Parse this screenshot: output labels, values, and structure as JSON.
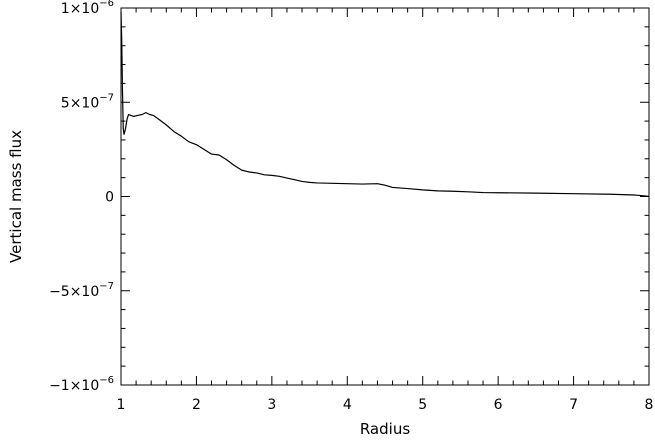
{
  "chart_data": {
    "type": "line",
    "title": "",
    "xlabel": "Radius",
    "ylabel": "Vertical mass flux",
    "xlim": [
      1,
      8
    ],
    "ylim": [
      -1e-06,
      1e-06
    ],
    "grid": false,
    "x_ticks": [
      {
        "value": 1,
        "label": "1"
      },
      {
        "value": 2,
        "label": "2"
      },
      {
        "value": 3,
        "label": "3"
      },
      {
        "value": 4,
        "label": "4"
      },
      {
        "value": 5,
        "label": "5"
      },
      {
        "value": 6,
        "label": "6"
      },
      {
        "value": 7,
        "label": "7"
      },
      {
        "value": 8,
        "label": "8"
      }
    ],
    "y_ticks": [
      {
        "value": 1e-06,
        "mant": "1×10",
        "exp": "−6"
      },
      {
        "value": 5e-07,
        "mant": "5×10",
        "exp": "−7"
      },
      {
        "value": 0,
        "mant": "0",
        "exp": ""
      },
      {
        "value": -5e-07,
        "mant": "−5×10",
        "exp": "−7"
      },
      {
        "value": -1e-06,
        "mant": "−1×10",
        "exp": "−6"
      }
    ],
    "series": [
      {
        "color": "#000000",
        "x": [
          1.0,
          1.01,
          1.02,
          1.03,
          1.04,
          1.06,
          1.08,
          1.1,
          1.13,
          1.17,
          1.22,
          1.28,
          1.33,
          1.38,
          1.43,
          1.5,
          1.6,
          1.7,
          1.8,
          1.9,
          2.0,
          2.1,
          2.2,
          2.3,
          2.4,
          2.5,
          2.6,
          2.7,
          2.8,
          2.9,
          3.0,
          3.1,
          3.2,
          3.3,
          3.4,
          3.5,
          3.6,
          3.8,
          4.0,
          4.2,
          4.4,
          4.5,
          4.6,
          4.8,
          5.0,
          5.2,
          5.4,
          5.6,
          5.8,
          6.0,
          6.5,
          7.0,
          7.5,
          7.8,
          7.95,
          8.0
        ],
        "y": [
          9.8e-07,
          8.2e-07,
          5.5e-07,
          3.6e-07,
          3.3e-07,
          3.6e-07,
          4.1e-07,
          4.35e-07,
          4.3e-07,
          4.25e-07,
          4.3e-07,
          4.35e-07,
          4.45e-07,
          4.35e-07,
          4.3e-07,
          4.1e-07,
          3.8e-07,
          3.45e-07,
          3.2e-07,
          2.9e-07,
          2.75e-07,
          2.5e-07,
          2.25e-07,
          2.2e-07,
          1.95e-07,
          1.65e-07,
          1.4e-07,
          1.3e-07,
          1.25e-07,
          1.15e-07,
          1.12e-07,
          1.07e-07,
          9.8e-08,
          8.9e-08,
          8e-08,
          7.5e-08,
          7.2e-08,
          7e-08,
          6.8e-08,
          6.6e-08,
          6.8e-08,
          6e-08,
          4.8e-08,
          4.2e-08,
          3.5e-08,
          3e-08,
          2.8e-08,
          2.5e-08,
          2.1e-08,
          2e-08,
          1.8e-08,
          1.5e-08,
          1.2e-08,
          8e-09,
          3e-09,
          0.0
        ]
      }
    ]
  }
}
